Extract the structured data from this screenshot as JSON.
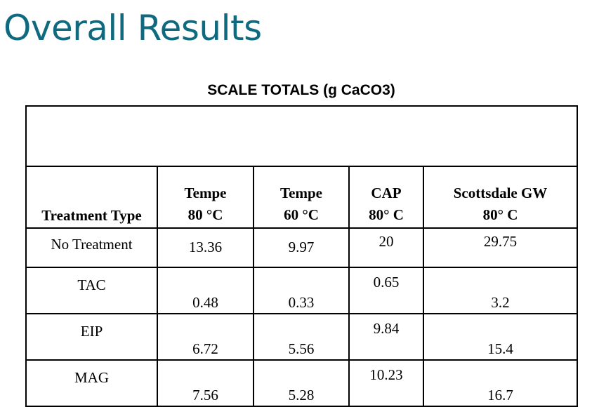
{
  "page": {
    "title": "Overall Results"
  },
  "table": {
    "caption": "SCALE TOTALS (g CaCO3)",
    "columns": [
      {
        "line1": "",
        "line2": "Treatment Type"
      },
      {
        "line1": "Tempe",
        "line2": "80 °C"
      },
      {
        "line1": "Tempe",
        "line2": "60 °C"
      },
      {
        "line1": "CAP",
        "line2": "80° C"
      },
      {
        "line1": "Scottsdale GW",
        "line2": "80° C"
      }
    ],
    "rows": [
      {
        "label": "No Treatment",
        "tempe_80": "13.36",
        "tempe_60": "9.97",
        "cap_80": "20",
        "scottsdale_80": "29.75"
      },
      {
        "label": "TAC",
        "tempe_80": "0.48",
        "tempe_60": "0.33",
        "cap_80": "0.65",
        "scottsdale_80": "3.2"
      },
      {
        "label": "EIP",
        "tempe_80": "6.72",
        "tempe_60": "5.56",
        "cap_80": "9.84",
        "scottsdale_80": "15.4"
      },
      {
        "label": "MAG",
        "tempe_80": "7.56",
        "tempe_60": "5.28",
        "cap_80": "10.23",
        "scottsdale_80": "16.7"
      }
    ]
  }
}
